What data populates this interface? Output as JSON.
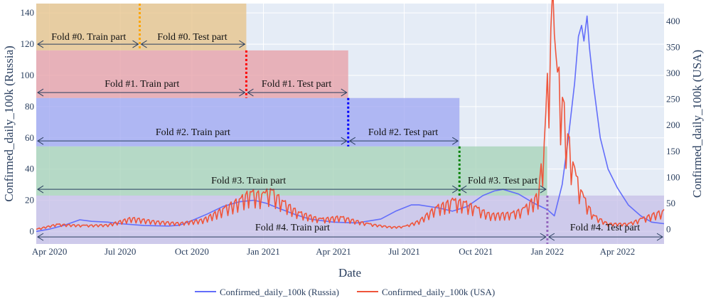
{
  "chart_data": {
    "type": "line",
    "xlabel": "Date",
    "ylabel_left": "Confirmed_daily_100k (Russia)",
    "ylabel_right": "Confirmed_daily_100k (USA)",
    "x_range": [
      "2020-03-15",
      "2022-05-31"
    ],
    "ylim_left": [
      -8,
      146
    ],
    "ylim_right": [
      -28,
      434
    ],
    "x_ticks": [
      {
        "date": "2020-04-01",
        "label": "Apr 2020"
      },
      {
        "date": "2020-07-01",
        "label": "Jul 2020"
      },
      {
        "date": "2020-10-01",
        "label": "Oct 2020"
      },
      {
        "date": "2021-01-01",
        "label": "Jan 2021"
      },
      {
        "date": "2021-04-01",
        "label": "Apr 2021"
      },
      {
        "date": "2021-07-01",
        "label": "Jul 2021"
      },
      {
        "date": "2021-10-01",
        "label": "Oct 2021"
      },
      {
        "date": "2022-01-01",
        "label": "Jan 2022"
      },
      {
        "date": "2022-04-01",
        "label": "Apr 2022"
      }
    ],
    "y_ticks_left": [
      0,
      20,
      40,
      60,
      80,
      100,
      120,
      140
    ],
    "y_ticks_right": [
      0,
      50,
      100,
      150,
      200,
      250,
      300,
      350,
      400
    ],
    "series": [
      {
        "name": "Confirmed_daily_100k (Russia)",
        "color": "#636efa",
        "axis": "left",
        "points": [
          [
            "2020-03-15",
            0
          ],
          [
            "2020-04-01",
            1.5
          ],
          [
            "2020-04-20",
            4
          ],
          [
            "2020-05-10",
            7.5
          ],
          [
            "2020-05-25",
            6.5
          ],
          [
            "2020-06-15",
            6
          ],
          [
            "2020-07-01",
            5
          ],
          [
            "2020-08-01",
            3.8
          ],
          [
            "2020-09-01",
            3.5
          ],
          [
            "2020-09-15",
            4
          ],
          [
            "2020-10-01",
            7
          ],
          [
            "2020-10-20",
            11
          ],
          [
            "2020-11-10",
            16
          ],
          [
            "2020-12-01",
            19
          ],
          [
            "2020-12-20",
            20
          ],
          [
            "2021-01-05",
            18
          ],
          [
            "2021-01-20",
            15
          ],
          [
            "2021-02-10",
            11
          ],
          [
            "2021-03-01",
            8
          ],
          [
            "2021-04-01",
            6
          ],
          [
            "2021-05-01",
            5.5
          ],
          [
            "2021-06-01",
            8
          ],
          [
            "2021-06-20",
            13
          ],
          [
            "2021-07-10",
            17
          ],
          [
            "2021-07-20",
            17
          ],
          [
            "2021-08-15",
            15
          ],
          [
            "2021-09-01",
            13
          ],
          [
            "2021-09-20",
            16
          ],
          [
            "2021-10-10",
            23
          ],
          [
            "2021-10-25",
            26
          ],
          [
            "2021-11-05",
            27
          ],
          [
            "2021-11-25",
            24
          ],
          [
            "2021-12-15",
            18
          ],
          [
            "2022-01-01",
            14
          ],
          [
            "2022-01-10",
            10
          ],
          [
            "2022-01-20",
            30
          ],
          [
            "2022-01-28",
            60
          ],
          [
            "2022-02-05",
            95
          ],
          [
            "2022-02-10",
            125
          ],
          [
            "2022-02-14",
            132
          ],
          [
            "2022-02-17",
            122
          ],
          [
            "2022-02-21",
            138
          ],
          [
            "2022-02-24",
            118
          ],
          [
            "2022-03-01",
            95
          ],
          [
            "2022-03-10",
            60
          ],
          [
            "2022-03-20",
            40
          ],
          [
            "2022-04-01",
            28
          ],
          [
            "2022-04-15",
            17
          ],
          [
            "2022-05-01",
            10
          ],
          [
            "2022-05-15",
            6
          ],
          [
            "2022-05-31",
            5
          ]
        ]
      },
      {
        "name": "Confirmed_daily_100k (USA)",
        "color": "#ef553b",
        "axis": "right",
        "points": [
          [
            "2020-03-15",
            0
          ],
          [
            "2020-04-10",
            9
          ],
          [
            "2020-05-15",
            7
          ],
          [
            "2020-06-15",
            8
          ],
          [
            "2020-07-15",
            20
          ],
          [
            "2020-08-15",
            14
          ],
          [
            "2020-09-15",
            11
          ],
          [
            "2020-10-15",
            17
          ],
          [
            "2020-11-10",
            36
          ],
          [
            "2020-12-01",
            52
          ],
          [
            "2020-12-15",
            65
          ],
          [
            "2021-01-01",
            60
          ],
          [
            "2021-01-10",
            70
          ],
          [
            "2021-01-25",
            50
          ],
          [
            "2021-02-15",
            30
          ],
          [
            "2021-03-15",
            18
          ],
          [
            "2021-04-10",
            22
          ],
          [
            "2021-05-15",
            10
          ],
          [
            "2021-06-15",
            4
          ],
          [
            "2021-07-01",
            5
          ],
          [
            "2021-07-20",
            15
          ],
          [
            "2021-08-10",
            38
          ],
          [
            "2021-09-01",
            50
          ],
          [
            "2021-09-15",
            48
          ],
          [
            "2021-10-01",
            38
          ],
          [
            "2021-10-20",
            26
          ],
          [
            "2021-11-15",
            28
          ],
          [
            "2021-12-01",
            35
          ],
          [
            "2021-12-20",
            60
          ],
          [
            "2021-12-28",
            150
          ],
          [
            "2022-01-03",
            300
          ],
          [
            "2022-01-08",
            390
          ],
          [
            "2022-01-12",
            280
          ],
          [
            "2022-01-18",
            250
          ],
          [
            "2022-01-25",
            180
          ],
          [
            "2022-02-05",
            100
          ],
          [
            "2022-02-15",
            60
          ],
          [
            "2022-03-01",
            25
          ],
          [
            "2022-03-20",
            10
          ],
          [
            "2022-04-15",
            10
          ],
          [
            "2022-05-01",
            18
          ],
          [
            "2022-05-20",
            28
          ],
          [
            "2022-05-31",
            32
          ]
        ]
      }
    ],
    "folds": [
      {
        "train_label": "Fold #0. Train part",
        "test_label": "Fold #0. Test part",
        "train_start": "2020-03-15",
        "split": "2020-07-26",
        "test_end": "2020-12-10",
        "y_low": 116,
        "y_high": 146,
        "fill": "#e8c48a",
        "marker_color": "#ffa500",
        "arrow_y": 120,
        "label_y": 120
      },
      {
        "train_label": "Fold #1. Train part",
        "test_label": "Fold #1. Test part",
        "train_start": "2020-03-15",
        "split": "2020-12-10",
        "test_end": "2021-04-20",
        "y_low": 85.5,
        "y_high": 116,
        "fill": "#e8a0a8",
        "marker_color": "#ff0000",
        "arrow_y": 89,
        "label_y": 90
      },
      {
        "train_label": "Fold #2. Train part",
        "test_label": "Fold #2. Test part",
        "train_start": "2020-03-15",
        "split": "2021-04-20",
        "test_end": "2021-09-10",
        "y_low": 54.5,
        "y_high": 85.5,
        "fill": "#a0a8f2",
        "marker_color": "#0000ff",
        "arrow_y": 58,
        "label_y": 59
      },
      {
        "train_label": "Fold #3. Train part",
        "test_label": "Fold #3. Test part",
        "train_start": "2020-03-15",
        "split": "2021-09-10",
        "test_end": "2022-01-01",
        "y_low": 23,
        "y_high": 54.5,
        "fill": "#a8d4b8",
        "marker_color": "#008000",
        "arrow_y": 27,
        "label_y": 28
      },
      {
        "train_label": "Fold #4. Train part",
        "test_label": "Fold #4. Test part",
        "train_start": "2020-03-15",
        "split": "2022-01-01",
        "test_end": "2022-05-31",
        "y_low": -8,
        "y_high": 23,
        "fill": "#c8c0e8",
        "marker_color": "#9467bd",
        "arrow_y": -3.5,
        "label_y": -2
      }
    ],
    "legend": [
      {
        "label": "Confirmed_daily_100k (Russia)",
        "color": "#636efa"
      },
      {
        "label": "Confirmed_daily_100k (USA)",
        "color": "#ef553b"
      }
    ],
    "legend_position": "bottom-center"
  }
}
